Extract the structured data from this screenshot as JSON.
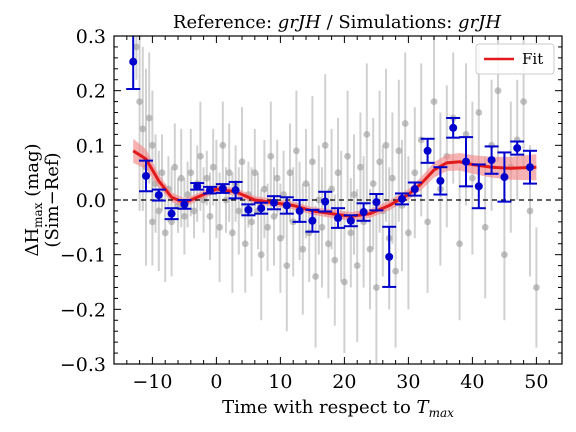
{
  "chart_data": {
    "type": "scatter",
    "title": "Reference: grJH / Simulations: grJH",
    "title_parts": {
      "prefix": "Reference: ",
      "ref_bands": "grJH",
      "middle": " / Simulations: ",
      "sim_bands": "grJH"
    },
    "xlabel": "Time with respect to T_max",
    "xlabel_parts": {
      "main": "Time with respect to ",
      "math": "T",
      "sub": "max"
    },
    "ylabel": "ΔH_max (mag) (Sim−Ref)",
    "ylabel_parts": {
      "delta": "ΔH",
      "sub": "max",
      "unit": " (mag)",
      "line2": "(Sim−Ref)"
    },
    "xlim": [
      -16,
      54
    ],
    "ylim": [
      -0.3,
      0.3
    ],
    "x_ticks": [
      -10,
      0,
      10,
      20,
      30,
      40,
      50
    ],
    "x_tick_labels": [
      "−10",
      "0",
      "10",
      "20",
      "30",
      "40",
      "50"
    ],
    "y_ticks": [
      -0.3,
      -0.2,
      -0.1,
      0.0,
      0.1,
      0.2,
      0.3
    ],
    "y_tick_labels": [
      "−0.3",
      "−0.2",
      "−0.1",
      "0.0",
      "0.1",
      "0.2",
      "0.3"
    ],
    "grid": false,
    "legend_position": "top-right",
    "reference_line": {
      "y": 0.0,
      "style": "dashed",
      "color": "#000000"
    },
    "series": [
      {
        "name": "Fit",
        "kind": "line",
        "color": "#e31a1c",
        "band_color": "#f28b8b",
        "x": [
          -13,
          -11,
          -9,
          -7,
          -5,
          -3,
          0,
          3,
          6,
          9,
          12,
          15,
          18,
          21,
          24,
          27,
          30,
          32,
          34,
          36,
          38,
          40,
          43,
          46,
          50
        ],
        "y": [
          0.09,
          0.075,
          0.035,
          0.005,
          -0.005,
          0.005,
          0.02,
          0.015,
          0.0,
          -0.005,
          -0.01,
          -0.02,
          -0.025,
          -0.03,
          -0.025,
          -0.01,
          0.01,
          0.03,
          0.055,
          0.068,
          0.07,
          0.065,
          0.06,
          0.058,
          0.06
        ],
        "band_halfwidth": [
          0.022,
          0.018,
          0.012,
          0.009,
          0.008,
          0.007,
          0.007,
          0.007,
          0.007,
          0.007,
          0.007,
          0.007,
          0.008,
          0.008,
          0.008,
          0.009,
          0.01,
          0.012,
          0.014,
          0.015,
          0.016,
          0.017,
          0.019,
          0.021,
          0.024
        ]
      },
      {
        "kind": "binned",
        "color": "#0000cc",
        "points": [
          {
            "x": -13,
            "y": 0.253,
            "err": 0.05
          },
          {
            "x": -11,
            "y": 0.044,
            "err": 0.028
          },
          {
            "x": -9,
            "y": 0.009,
            "err": 0.01
          },
          {
            "x": -7,
            "y": -0.025,
            "err": 0.01
          },
          {
            "x": -5,
            "y": -0.008,
            "err": 0.008
          },
          {
            "x": -3,
            "y": 0.025,
            "err": 0.006
          },
          {
            "x": -1,
            "y": 0.018,
            "err": 0.006
          },
          {
            "x": 1,
            "y": 0.021,
            "err": 0.008
          },
          {
            "x": 3,
            "y": 0.018,
            "err": 0.015
          },
          {
            "x": 5,
            "y": -0.018,
            "err": 0.01
          },
          {
            "x": 7,
            "y": -0.015,
            "err": 0.01
          },
          {
            "x": 9,
            "y": -0.005,
            "err": 0.012
          },
          {
            "x": 11,
            "y": -0.01,
            "err": 0.015
          },
          {
            "x": 13,
            "y": -0.02,
            "err": 0.02
          },
          {
            "x": 15,
            "y": -0.038,
            "err": 0.02
          },
          {
            "x": 17,
            "y": -0.003,
            "err": 0.018
          },
          {
            "x": 19,
            "y": -0.033,
            "err": 0.018
          },
          {
            "x": 21,
            "y": -0.038,
            "err": 0.01
          },
          {
            "x": 23,
            "y": -0.022,
            "err": 0.016
          },
          {
            "x": 25,
            "y": -0.004,
            "err": 0.015
          },
          {
            "x": 27,
            "y": -0.104,
            "err": 0.055
          },
          {
            "x": 29,
            "y": 0.002,
            "err": 0.01
          },
          {
            "x": 31,
            "y": 0.02,
            "err": 0.012
          },
          {
            "x": 33,
            "y": 0.09,
            "err": 0.022
          },
          {
            "x": 35,
            "y": 0.035,
            "err": 0.025
          },
          {
            "x": 37,
            "y": 0.132,
            "err": 0.018
          },
          {
            "x": 39,
            "y": 0.07,
            "err": 0.045
          },
          {
            "x": 41,
            "y": 0.025,
            "err": 0.04
          },
          {
            "x": 43,
            "y": 0.073,
            "err": 0.025
          },
          {
            "x": 45,
            "y": 0.042,
            "err": 0.045
          },
          {
            "x": 47,
            "y": 0.095,
            "err": 0.012
          },
          {
            "x": 49,
            "y": 0.06,
            "err": 0.03
          }
        ]
      },
      {
        "kind": "individual",
        "color": "#999999",
        "points": [
          {
            "x": -12.5,
            "y": 0.28,
            "err": 0.06
          },
          {
            "x": -12,
            "y": 0.18,
            "err": 0.2
          },
          {
            "x": -11.5,
            "y": 0.13,
            "err": 0.15
          },
          {
            "x": -11,
            "y": 0.06,
            "err": 0.18
          },
          {
            "x": -10.5,
            "y": 0.15,
            "err": 0.12
          },
          {
            "x": -10,
            "y": 0.1,
            "err": 0.1
          },
          {
            "x": -10,
            "y": -0.04,
            "err": 0.08
          },
          {
            "x": -9.5,
            "y": 0.03,
            "err": 0.09
          },
          {
            "x": -9,
            "y": -0.02,
            "err": 0.11
          },
          {
            "x": -8.5,
            "y": 0.05,
            "err": 0.07
          },
          {
            "x": -8,
            "y": -0.06,
            "err": 0.09
          },
          {
            "x": -7.5,
            "y": 0.02,
            "err": 0.06
          },
          {
            "x": -7,
            "y": -0.04,
            "err": 0.1
          },
          {
            "x": -6.5,
            "y": 0.06,
            "err": 0.08
          },
          {
            "x": -6,
            "y": -0.01,
            "err": 0.05
          },
          {
            "x": -5.5,
            "y": 0.04,
            "err": 0.09
          },
          {
            "x": -5,
            "y": -0.03,
            "err": 0.07
          },
          {
            "x": -4.5,
            "y": 0.01,
            "err": 0.06
          },
          {
            "x": -4,
            "y": 0.05,
            "err": 0.08
          },
          {
            "x": -3.5,
            "y": -0.02,
            "err": 0.05
          },
          {
            "x": -3,
            "y": 0.03,
            "err": 0.07
          },
          {
            "x": -2.5,
            "y": 0.08,
            "err": 0.1
          },
          {
            "x": -2,
            "y": 0.0,
            "err": 0.06
          },
          {
            "x": -1.5,
            "y": 0.04,
            "err": 0.05
          },
          {
            "x": -1,
            "y": -0.03,
            "err": 0.08
          },
          {
            "x": -0.5,
            "y": 0.06,
            "err": 0.07
          },
          {
            "x": 0,
            "y": 0.02,
            "err": 0.09
          },
          {
            "x": 0.5,
            "y": -0.05,
            "err": 0.1
          },
          {
            "x": 1,
            "y": 0.1,
            "err": 0.08
          },
          {
            "x": 1.5,
            "y": 0.0,
            "err": 0.06
          },
          {
            "x": 2,
            "y": 0.05,
            "err": 0.09
          },
          {
            "x": 2.5,
            "y": -0.06,
            "err": 0.11
          },
          {
            "x": 3,
            "y": 0.03,
            "err": 0.07
          },
          {
            "x": 3.5,
            "y": -0.02,
            "err": 0.08
          },
          {
            "x": 4,
            "y": 0.07,
            "err": 0.1
          },
          {
            "x": 4.5,
            "y": -0.08,
            "err": 0.09
          },
          {
            "x": 5,
            "y": 0.01,
            "err": 0.06
          },
          {
            "x": 5.5,
            "y": -0.04,
            "err": 0.1
          },
          {
            "x": 6,
            "y": 0.05,
            "err": 0.08
          },
          {
            "x": 6.5,
            "y": -0.02,
            "err": 0.07
          },
          {
            "x": 7,
            "y": -0.1,
            "err": 0.12
          },
          {
            "x": 7.5,
            "y": 0.02,
            "err": 0.09
          },
          {
            "x": 8,
            "y": -0.05,
            "err": 0.08
          },
          {
            "x": 8.5,
            "y": 0.08,
            "err": 0.1
          },
          {
            "x": 9,
            "y": -0.03,
            "err": 0.09
          },
          {
            "x": 9.5,
            "y": 0.04,
            "err": 0.07
          },
          {
            "x": 10,
            "y": -0.07,
            "err": 0.1
          },
          {
            "x": 10.5,
            "y": 0.01,
            "err": 0.08
          },
          {
            "x": 11,
            "y": -0.12,
            "err": 0.12
          },
          {
            "x": 11.5,
            "y": 0.05,
            "err": 0.09
          },
          {
            "x": 12,
            "y": -0.04,
            "err": 0.1
          },
          {
            "x": 12.5,
            "y": 0.09,
            "err": 0.11
          },
          {
            "x": 13,
            "y": -0.02,
            "err": 0.09
          },
          {
            "x": 13.5,
            "y": -0.09,
            "err": 0.12
          },
          {
            "x": 14,
            "y": 0.03,
            "err": 0.1
          },
          {
            "x": 14.5,
            "y": -0.06,
            "err": 0.09
          },
          {
            "x": 15,
            "y": 0.07,
            "err": 0.12
          },
          {
            "x": 15.5,
            "y": -0.14,
            "err": 0.13
          },
          {
            "x": 16,
            "y": 0.0,
            "err": 0.1
          },
          {
            "x": 16.5,
            "y": -0.05,
            "err": 0.11
          },
          {
            "x": 17,
            "y": 0.1,
            "err": 0.13
          },
          {
            "x": 17.5,
            "y": -0.08,
            "err": 0.1
          },
          {
            "x": 18,
            "y": 0.02,
            "err": 0.11
          },
          {
            "x": 18.5,
            "y": -0.11,
            "err": 0.12
          },
          {
            "x": 19,
            "y": 0.05,
            "err": 0.1
          },
          {
            "x": 19.5,
            "y": -0.03,
            "err": 0.12
          },
          {
            "x": 20,
            "y": -0.15,
            "err": 0.13
          },
          {
            "x": 20.5,
            "y": 0.08,
            "err": 0.12
          },
          {
            "x": 21,
            "y": -0.06,
            "err": 0.1
          },
          {
            "x": 21.5,
            "y": 0.01,
            "err": 0.11
          },
          {
            "x": 22,
            "y": -0.12,
            "err": 0.14
          },
          {
            "x": 22.5,
            "y": 0.06,
            "err": 0.1
          },
          {
            "x": 23,
            "y": -0.04,
            "err": 0.12
          },
          {
            "x": 23.5,
            "y": 0.12,
            "err": 0.13
          },
          {
            "x": 24,
            "y": -0.09,
            "err": 0.11
          },
          {
            "x": 24.5,
            "y": 0.03,
            "err": 0.12
          },
          {
            "x": 25,
            "y": -0.16,
            "err": 0.14
          },
          {
            "x": 25.5,
            "y": 0.07,
            "err": 0.13
          },
          {
            "x": 26,
            "y": -0.02,
            "err": 0.12
          },
          {
            "x": 26.5,
            "y": 0.1,
            "err": 0.14
          },
          {
            "x": 27,
            "y": -0.07,
            "err": 0.13
          },
          {
            "x": 27.5,
            "y": 0.04,
            "err": 0.12
          },
          {
            "x": 28,
            "y": -0.13,
            "err": 0.14
          },
          {
            "x": 28.5,
            "y": 0.09,
            "err": 0.13
          },
          {
            "x": 29,
            "y": -0.01,
            "err": 0.12
          },
          {
            "x": 29.5,
            "y": 0.14,
            "err": 0.13
          },
          {
            "x": 30,
            "y": -0.06,
            "err": 0.14
          },
          {
            "x": 31,
            "y": 0.05,
            "err": 0.12
          },
          {
            "x": 32,
            "y": 0.11,
            "err": 0.14
          },
          {
            "x": 33,
            "y": -0.04,
            "err": 0.13
          },
          {
            "x": 34,
            "y": 0.18,
            "err": 0.12
          },
          {
            "x": 35,
            "y": 0.02,
            "err": 0.14
          },
          {
            "x": 36,
            "y": 0.08,
            "err": 0.13
          },
          {
            "x": 37,
            "y": 0.15,
            "err": 0.12
          },
          {
            "x": 38,
            "y": -0.08,
            "err": 0.14
          },
          {
            "x": 39,
            "y": 0.12,
            "err": 0.13
          },
          {
            "x": 40,
            "y": 0.04,
            "err": 0.14
          },
          {
            "x": 41,
            "y": 0.16,
            "err": 0.12
          },
          {
            "x": 42,
            "y": -0.05,
            "err": 0.13
          },
          {
            "x": 43,
            "y": 0.1,
            "err": 0.12
          },
          {
            "x": 44,
            "y": 0.2,
            "err": 0.13
          },
          {
            "x": 45,
            "y": -0.1,
            "err": 0.12
          },
          {
            "x": 46,
            "y": 0.06,
            "err": 0.12
          },
          {
            "x": 47,
            "y": 0.11,
            "err": 0.11
          },
          {
            "x": 48,
            "y": 0.18,
            "err": 0.12
          },
          {
            "x": 49,
            "y": -0.02,
            "err": 0.12
          },
          {
            "x": 50,
            "y": -0.16,
            "err": 0.11
          }
        ]
      }
    ]
  }
}
